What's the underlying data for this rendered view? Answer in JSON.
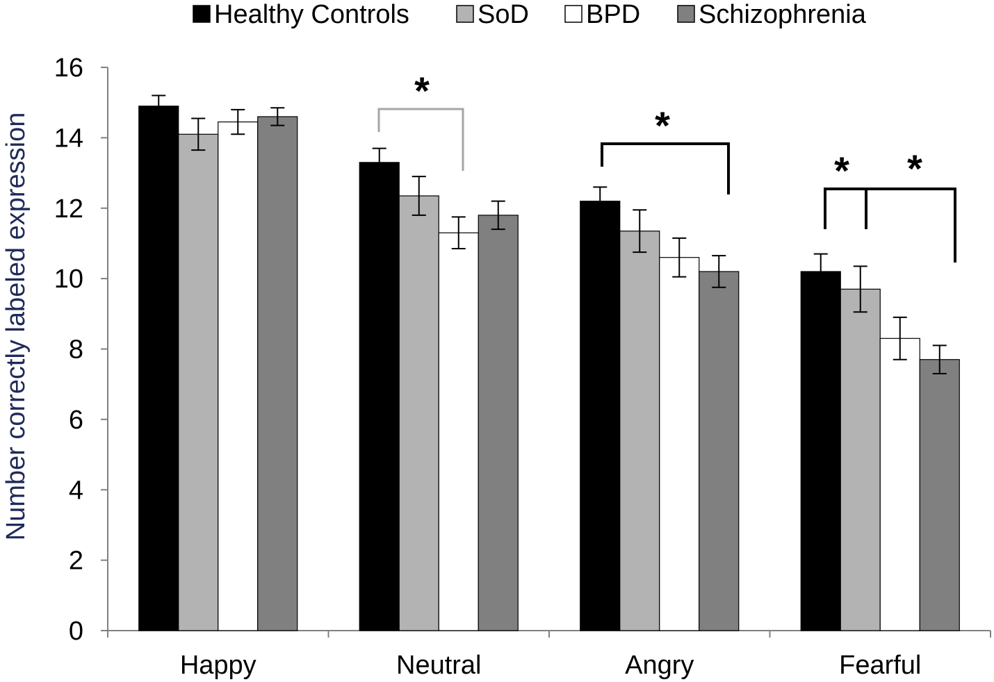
{
  "chart_data": {
    "type": "bar",
    "title": "",
    "xlabel": "",
    "ylabel": "Number correctly labeled expression",
    "categories": [
      "Happy",
      "Neutral",
      "Angry",
      "Fearful"
    ],
    "ylim": [
      0,
      16
    ],
    "yticks": [
      0,
      2,
      4,
      6,
      8,
      10,
      12,
      14,
      16
    ],
    "grid": false,
    "legend_position": "top",
    "series": [
      {
        "name": "Healthy Controls",
        "color": "#000000",
        "values": [
          14.9,
          13.3,
          12.2,
          10.2
        ],
        "errors": [
          0.3,
          0.4,
          0.4,
          0.5
        ]
      },
      {
        "name": "SoD",
        "color": "#b3b3b3",
        "values": [
          14.1,
          12.35,
          11.35,
          9.7
        ],
        "errors": [
          0.45,
          0.55,
          0.6,
          0.65
        ]
      },
      {
        "name": "BPD",
        "color": "#ffffff",
        "values": [
          14.45,
          11.3,
          10.6,
          8.3
        ],
        "errors": [
          0.35,
          0.45,
          0.55,
          0.6
        ]
      },
      {
        "name": "Schizophrenia",
        "color": "#808080",
        "values": [
          14.6,
          11.8,
          10.2,
          7.7
        ],
        "errors": [
          0.25,
          0.4,
          0.45,
          0.4
        ]
      }
    ],
    "annotations": [
      {
        "text": "*",
        "category": "Neutral",
        "between": [
          "Healthy Controls",
          "BPD"
        ],
        "color": "#a6a6a6"
      },
      {
        "text": "*",
        "category": "Angry",
        "between": [
          "Healthy Controls",
          "Schizophrenia"
        ],
        "color": "#000000"
      },
      {
        "text": "*",
        "category": "Fearful",
        "between": [
          "Healthy Controls",
          "SoD"
        ],
        "color": "#000000"
      },
      {
        "text": "*",
        "category": "Fearful",
        "between": [
          "SoD",
          "Schizophrenia"
        ],
        "color": "#000000"
      }
    ]
  }
}
